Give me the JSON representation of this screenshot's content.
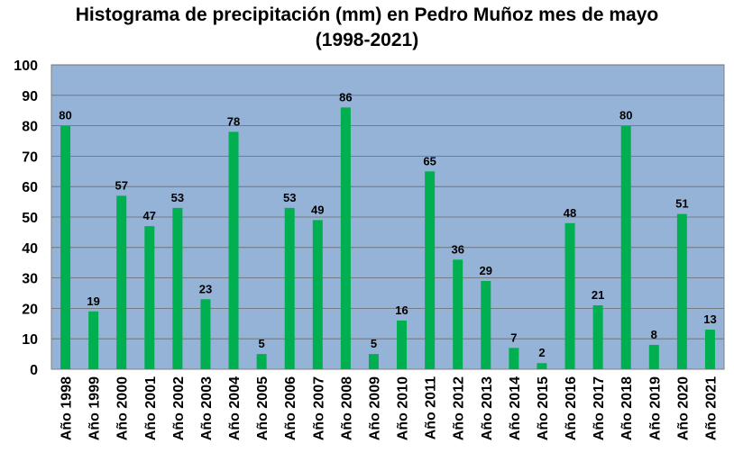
{
  "chart_data": {
    "type": "bar",
    "title": "Histograma de precipitación (mm) en Pedro Muñoz mes de mayo",
    "subtitle": "(1998-2021)",
    "xlabel": "",
    "ylabel": "",
    "categories": [
      "Año 1998",
      "Año 1999",
      "Año 2000",
      "Año 2001",
      "Año 2002",
      "Año 2003",
      "Año 2004",
      "Año 2005",
      "Año 2006",
      "Año 2007",
      "Año 2008",
      "Año 2009",
      "Año 2010",
      "Año 2011",
      "Año 2012",
      "Año 2013",
      "Año 2014",
      "Año 2015",
      "Año 2016",
      "Año 2017",
      "Año 2018",
      "Año 2019",
      "Año 2020",
      "Año 2021"
    ],
    "values": [
      80,
      19,
      57,
      47,
      53,
      23,
      78,
      5,
      53,
      49,
      86,
      5,
      16,
      65,
      36,
      29,
      7,
      2,
      48,
      21,
      80,
      8,
      51,
      13
    ],
    "ylim": [
      0,
      100
    ],
    "yticks": [
      0,
      10,
      20,
      30,
      40,
      50,
      60,
      70,
      80,
      90,
      100
    ],
    "grid": true,
    "legend": "none",
    "data_labels": true,
    "colors": {
      "bar": "#00b050",
      "plot_background": "#95b3d7",
      "gridline": "#6b6b6b",
      "text": "#000000"
    }
  }
}
